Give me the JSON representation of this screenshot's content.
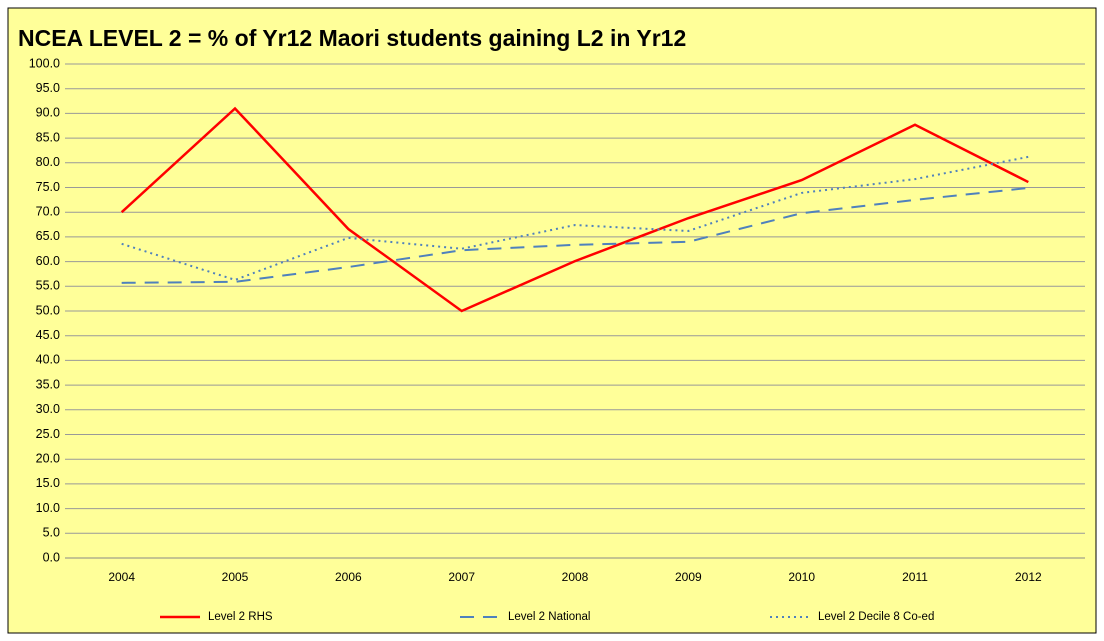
{
  "chart_data": {
    "type": "line",
    "title": "NCEA LEVEL 2 = % of Yr12 Maori students gaining L2 in Yr12",
    "categories": [
      "2004",
      "2005",
      "2006",
      "2007",
      "2008",
      "2009",
      "2010",
      "2011",
      "2012"
    ],
    "series": [
      {
        "name": "Level 2 RHS",
        "color": "#ff0000",
        "style": "solid",
        "values": [
          70.0,
          91.0,
          66.6,
          50.0,
          60.1,
          68.8,
          76.5,
          87.7,
          76.1
        ]
      },
      {
        "name": "Level 2 National",
        "color": "#4f81bd",
        "style": "dashed",
        "values": [
          55.7,
          55.9,
          58.9,
          62.3,
          63.4,
          64.0,
          69.8,
          72.5,
          74.9
        ]
      },
      {
        "name": "Level 2 Decile 8 Co-ed",
        "color": "#4f81bd",
        "style": "dotted",
        "values": [
          63.6,
          56.3,
          64.8,
          62.6,
          67.4,
          66.2,
          73.9,
          76.7,
          81.2
        ]
      }
    ],
    "ylim": [
      0,
      100
    ],
    "yticks": [
      {
        "value": 0,
        "label": "0.0"
      },
      {
        "value": 5,
        "label": "5.0"
      },
      {
        "value": 10,
        "label": "10.0"
      },
      {
        "value": 15,
        "label": "15.0"
      },
      {
        "value": 20,
        "label": "20.0"
      },
      {
        "value": 25,
        "label": "25.0"
      },
      {
        "value": 30,
        "label": "30.0"
      },
      {
        "value": 35,
        "label": "35.0"
      },
      {
        "value": 40,
        "label": "40.0"
      },
      {
        "value": 45,
        "label": "45.0"
      },
      {
        "value": 50,
        "label": "50.0"
      },
      {
        "value": 55,
        "label": "55.0"
      },
      {
        "value": 60,
        "label": "60.0"
      },
      {
        "value": 65,
        "label": "65.0"
      },
      {
        "value": 70,
        "label": "70.0"
      },
      {
        "value": 75,
        "label": "75.0"
      },
      {
        "value": 80,
        "label": "80.0"
      },
      {
        "value": 85,
        "label": "85.0"
      },
      {
        "value": 90,
        "label": "90.0"
      },
      {
        "value": 95,
        "label": "95.0"
      },
      {
        "value": 100,
        "label": "100.0"
      }
    ],
    "grid": true,
    "legend": "bottom"
  }
}
